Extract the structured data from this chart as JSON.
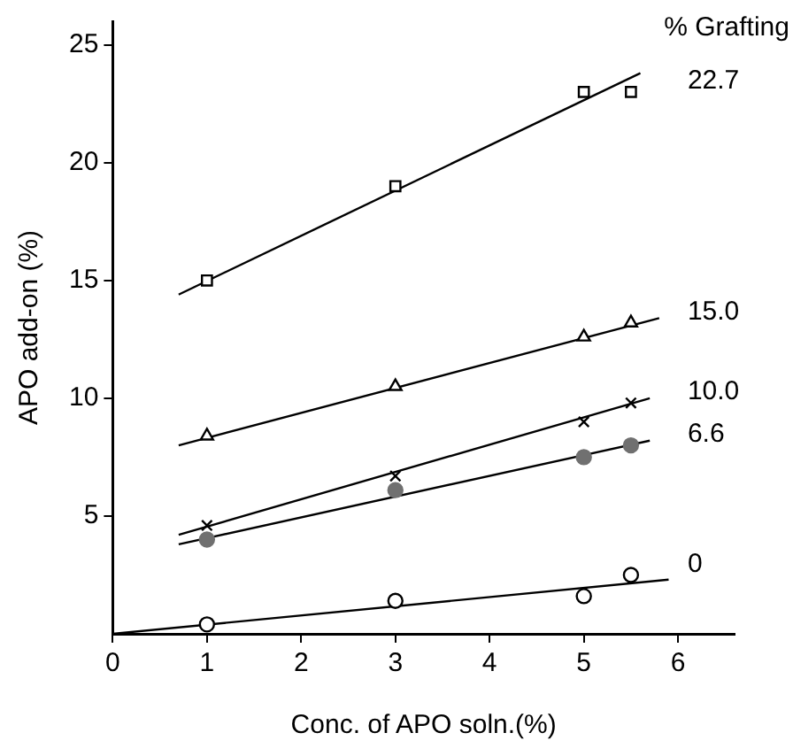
{
  "chart_data": {
    "type": "scatter",
    "xlabel": "Conc. of APO soln.(%)",
    "ylabel": "APO add-on (%)",
    "legend_title": "% Grafting",
    "xlim": [
      0,
      6.6
    ],
    "xticks": [
      0,
      1,
      2,
      3,
      4,
      5,
      6
    ],
    "ylim": [
      0,
      26
    ],
    "yticks": [
      5,
      10,
      15,
      20,
      25
    ],
    "grid": false,
    "legend": false,
    "series": [
      {
        "name": "22.7",
        "marker": "square",
        "color": "#000000",
        "x": [
          1,
          3,
          5,
          5.5
        ],
        "values": [
          15,
          19,
          23,
          23
        ]
      },
      {
        "name": "15.0",
        "marker": "triangle",
        "color": "#000000",
        "x": [
          1,
          3,
          5,
          5.5
        ],
        "values": [
          8.4,
          10.5,
          12.6,
          13.2
        ]
      },
      {
        "name": "10.0",
        "marker": "cross",
        "color": "#000000",
        "x": [
          1,
          3,
          5,
          5.5
        ],
        "values": [
          4.6,
          6.7,
          9.0,
          9.8
        ]
      },
      {
        "name": "6.6",
        "marker": "circle",
        "color": "#707070",
        "x": [
          1,
          3,
          5,
          5.5
        ],
        "values": [
          4.0,
          6.1,
          7.5,
          8.0
        ]
      },
      {
        "name": "0",
        "marker": "circle",
        "color": "#000000",
        "x": [
          1,
          3,
          5,
          5.5
        ],
        "values": [
          0.4,
          1.4,
          1.6,
          2.5
        ]
      },
      {
        "type": "line",
        "marker": "none",
        "color": "#000000",
        "x": [
          0.7,
          5.6
        ],
        "values": [
          14.4,
          23.8
        ]
      },
      {
        "type": "line",
        "marker": "none",
        "color": "#000000",
        "x": [
          0.7,
          5.8
        ],
        "values": [
          8.0,
          13.4
        ]
      },
      {
        "type": "line",
        "marker": "none",
        "color": "#000000",
        "x": [
          0.7,
          5.7
        ],
        "values": [
          4.2,
          10.0
        ]
      },
      {
        "type": "line",
        "marker": "none",
        "color": "#000000",
        "x": [
          0.7,
          5.7
        ],
        "values": [
          3.8,
          8.2
        ]
      },
      {
        "type": "line",
        "marker": "none",
        "color": "#000000",
        "x": [
          0,
          5.9
        ],
        "values": [
          0,
          2.3
        ]
      }
    ]
  }
}
